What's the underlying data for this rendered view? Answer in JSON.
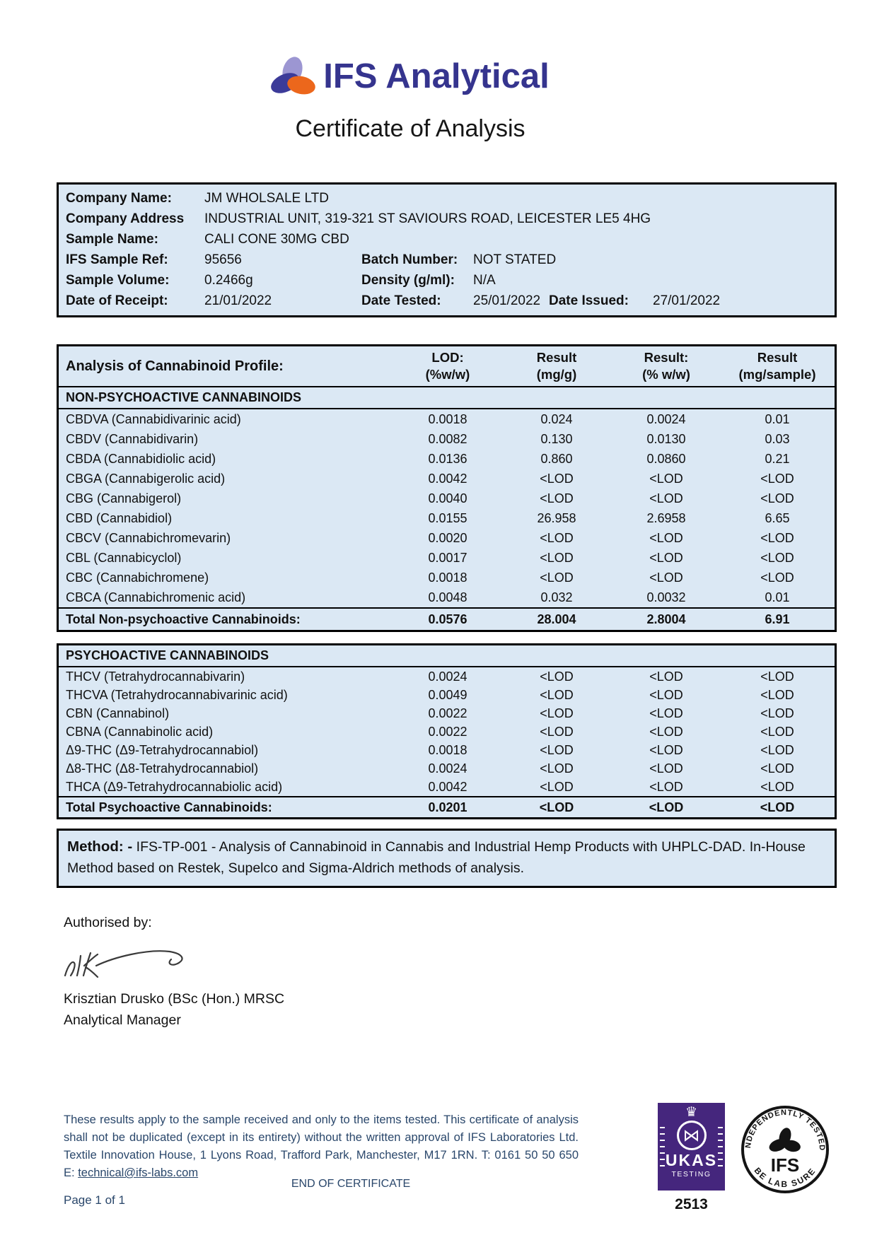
{
  "colors": {
    "brand_indigo": "#35348e",
    "logo_lavender": "#9c96d2",
    "logo_dark_blue": "#3c3b99",
    "logo_orange": "#ec671c",
    "table_background": "#dbe8f4",
    "ukas_purple": "#45267d",
    "footer_navy": "#2a476b"
  },
  "header": {
    "brand": "IFS Analytical",
    "title": "Certificate of Analysis"
  },
  "sample_info": {
    "rows": [
      {
        "label": "Company Name:",
        "value": "JM WHOLSALE LTD"
      },
      {
        "label": "Company Address",
        "value": "INDUSTRIAL UNIT, 319-321 ST SAVIOURS ROAD, LEICESTER LE5 4HG"
      },
      {
        "label": "Sample Name:",
        "value": "CALI CONE 30MG CBD"
      },
      {
        "label": "IFS Sample Ref:",
        "value": "95656",
        "label2": "Batch Number:",
        "value2": "NOT STATED"
      },
      {
        "label": "Sample Volume:",
        "value": "0.2466g",
        "label2": "Density (g/ml):",
        "value2": "N/A"
      },
      {
        "label": "Date of Receipt:",
        "value": "21/01/2022",
        "label2": "Date Tested:",
        "value2": "25/01/2022",
        "label3": "Date Issued:",
        "value3": "27/01/2022"
      }
    ]
  },
  "analysis": {
    "title": "Analysis of Cannabinoid Profile:",
    "columns": [
      {
        "l1": "LOD:",
        "l2": "(%w/w)"
      },
      {
        "l1": "Result",
        "l2": "(mg/g)"
      },
      {
        "l1": "Result:",
        "l2": "(% w/w)"
      },
      {
        "l1": "Result",
        "l2": "(mg/sample)"
      }
    ],
    "sections": [
      {
        "heading": "NON-PSYCHOACTIVE CANNABINOIDS",
        "rows": [
          {
            "name": "CBDVA (Cannabidivarinic acid)",
            "lod": "0.0018",
            "mg_g": "0.024",
            "pct_ww": "0.0024",
            "mg_sample": "0.01"
          },
          {
            "name": "CBDV (Cannabidivarin)",
            "lod": "0.0082",
            "mg_g": "0.130",
            "pct_ww": "0.0130",
            "mg_sample": "0.03"
          },
          {
            "name": "CBDA (Cannabidiolic acid)",
            "lod": "0.0136",
            "mg_g": "0.860",
            "pct_ww": "0.0860",
            "mg_sample": "0.21"
          },
          {
            "name": "CBGA (Cannabigerolic acid)",
            "lod": "0.0042",
            "mg_g": "<LOD",
            "pct_ww": "<LOD",
            "mg_sample": "<LOD"
          },
          {
            "name": "CBG (Cannabigerol)",
            "lod": "0.0040",
            "mg_g": "<LOD",
            "pct_ww": "<LOD",
            "mg_sample": "<LOD"
          },
          {
            "name": "CBD (Cannabidiol)",
            "lod": "0.0155",
            "mg_g": "26.958",
            "pct_ww": "2.6958",
            "mg_sample": "6.65"
          },
          {
            "name": "CBCV (Cannabichromevarin)",
            "lod": "0.0020",
            "mg_g": "<LOD",
            "pct_ww": "<LOD",
            "mg_sample": "<LOD"
          },
          {
            "name": "CBL (Cannabicyclol)",
            "lod": "0.0017",
            "mg_g": "<LOD",
            "pct_ww": "<LOD",
            "mg_sample": "<LOD"
          },
          {
            "name": "CBC (Cannabichromene)",
            "lod": "0.0018",
            "mg_g": "<LOD",
            "pct_ww": "<LOD",
            "mg_sample": "<LOD"
          },
          {
            "name": "CBCA (Cannabichromenic acid)",
            "lod": "0.0048",
            "mg_g": "0.032",
            "pct_ww": "0.0032",
            "mg_sample": "0.01"
          }
        ],
        "total": {
          "name": "Total Non-psychoactive Cannabinoids:",
          "lod": "0.0576",
          "mg_g": "28.004",
          "pct_ww": "2.8004",
          "mg_sample": "6.91"
        }
      },
      {
        "heading": "PSYCHOACTIVE CANNABINOIDS",
        "rows": [
          {
            "name": "THCV (Tetrahydrocannabivarin)",
            "lod": "0.0024",
            "mg_g": "<LOD",
            "pct_ww": "<LOD",
            "mg_sample": "<LOD"
          },
          {
            "name": "THCVA (Tetrahydrocannabivarinic acid)",
            "lod": "0.0049",
            "mg_g": "<LOD",
            "pct_ww": "<LOD",
            "mg_sample": "<LOD"
          },
          {
            "name": "CBN (Cannabinol)",
            "lod": "0.0022",
            "mg_g": "<LOD",
            "pct_ww": "<LOD",
            "mg_sample": "<LOD"
          },
          {
            "name": "CBNA (Cannabinolic acid)",
            "lod": "0.0022",
            "mg_g": "<LOD",
            "pct_ww": "<LOD",
            "mg_sample": "<LOD"
          },
          {
            "name": "Δ9-THC (Δ9-Tetrahydrocannabiol)",
            "lod": "0.0018",
            "mg_g": "<LOD",
            "pct_ww": "<LOD",
            "mg_sample": "<LOD"
          },
          {
            "name": "Δ8-THC (Δ8-Tetrahydrocannabiol)",
            "lod": "0.0024",
            "mg_g": "<LOD",
            "pct_ww": "<LOD",
            "mg_sample": "<LOD"
          },
          {
            "name": "THCA (Δ9-Tetrahydrocannabiolic acid)",
            "lod": "0.0042",
            "mg_g": "<LOD",
            "pct_ww": "<LOD",
            "mg_sample": "<LOD"
          }
        ],
        "total": {
          "name": "Total Psychoactive Cannabinoids:",
          "lod": "0.0201",
          "mg_g": "<LOD",
          "pct_ww": "<LOD",
          "mg_sample": "<LOD"
        }
      }
    ]
  },
  "method": {
    "label": "Method: -",
    "text": " IFS-TP-001 - Analysis of Cannabinoid in Cannabis and Industrial Hemp Products with UHPLC-DAD. In-House Method based on Restek, Supelco and Sigma-Aldrich methods of analysis."
  },
  "authorisation": {
    "heading": "Authorised by:",
    "name": "Krisztian Drusko (BSc (Hon.) MRSC",
    "role": "Analytical Manager"
  },
  "footer": {
    "disclaimer": "These results apply to the sample received and only to the items tested. This certificate of analysis shall not be duplicated (except in its entirety) without the written approval of IFS Laboratories Ltd. Textile Innovation House, 1 Lyons Road, Trafford Park, Manchester, M17 1RN. T: 0161 50 50 650 E: ",
    "email": "technical@ifs-labs.com",
    "end_text": "END OF CERTIFICATE",
    "page_number": "Page 1 of 1",
    "ukas": {
      "label": "UKAS",
      "sublabel": "TESTING",
      "number": "2513",
      "crown_glyph": "♛",
      "symbol_glyph": "⋈"
    },
    "seal": {
      "top": "INDEPENDENTLY TESTED",
      "bottom": "BE LAB SURE",
      "center": "IFS"
    }
  }
}
